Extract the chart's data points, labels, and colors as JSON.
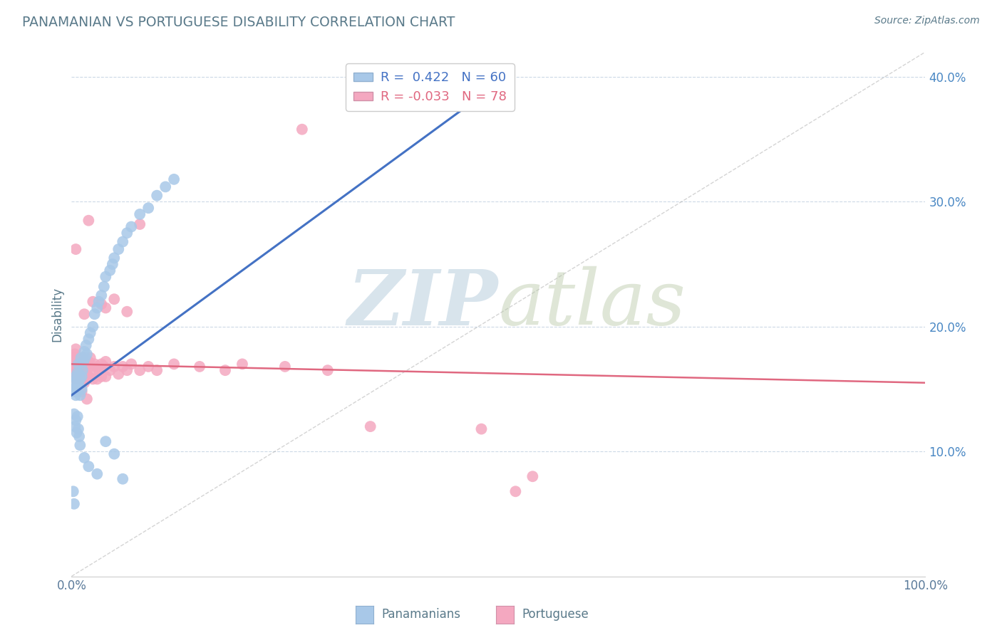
{
  "title": "PANAMANIAN VS PORTUGUESE DISABILITY CORRELATION CHART",
  "source": "Source: ZipAtlas.com",
  "ylabel": "Disability",
  "title_color": "#5a7a8a",
  "panamanian_color": "#a8c8e8",
  "portuguese_color": "#f4a8c0",
  "panamanian_line_color": "#4472c4",
  "portuguese_line_color": "#e06880",
  "ylim_min": 0.0,
  "ylim_max": 0.42,
  "xlim_min": 0.0,
  "xlim_max": 1.0,
  "yticks": [
    0.1,
    0.2,
    0.3,
    0.4
  ],
  "ytick_labels": [
    "10.0%",
    "20.0%",
    "30.0%",
    "40.0%"
  ],
  "xtick_labels": [
    "0.0%",
    "100.0%"
  ],
  "pan_line_x0": 0.0,
  "pan_line_y0": 0.145,
  "pan_line_x1": 0.5,
  "pan_line_y1": 0.395,
  "por_line_x0": 0.0,
  "por_line_y0": 0.17,
  "por_line_x1": 1.0,
  "por_line_y1": 0.155,
  "panamanian_points": [
    [
      0.002,
      0.15
    ],
    [
      0.003,
      0.155
    ],
    [
      0.004,
      0.148
    ],
    [
      0.005,
      0.16
    ],
    [
      0.005,
      0.145
    ],
    [
      0.006,
      0.152
    ],
    [
      0.006,
      0.158
    ],
    [
      0.007,
      0.163
    ],
    [
      0.007,
      0.148
    ],
    [
      0.008,
      0.155
    ],
    [
      0.008,
      0.17
    ],
    [
      0.009,
      0.162
    ],
    [
      0.01,
      0.158
    ],
    [
      0.01,
      0.145
    ],
    [
      0.011,
      0.175
    ],
    [
      0.012,
      0.16
    ],
    [
      0.012,
      0.15
    ],
    [
      0.013,
      0.165
    ],
    [
      0.014,
      0.172
    ],
    [
      0.015,
      0.18
    ],
    [
      0.016,
      0.175
    ],
    [
      0.017,
      0.185
    ],
    [
      0.018,
      0.178
    ],
    [
      0.02,
      0.19
    ],
    [
      0.022,
      0.195
    ],
    [
      0.025,
      0.2
    ],
    [
      0.027,
      0.21
    ],
    [
      0.03,
      0.215
    ],
    [
      0.032,
      0.22
    ],
    [
      0.035,
      0.225
    ],
    [
      0.038,
      0.232
    ],
    [
      0.04,
      0.24
    ],
    [
      0.045,
      0.245
    ],
    [
      0.048,
      0.25
    ],
    [
      0.05,
      0.255
    ],
    [
      0.055,
      0.262
    ],
    [
      0.06,
      0.268
    ],
    [
      0.065,
      0.275
    ],
    [
      0.07,
      0.28
    ],
    [
      0.08,
      0.29
    ],
    [
      0.09,
      0.295
    ],
    [
      0.1,
      0.305
    ],
    [
      0.11,
      0.312
    ],
    [
      0.12,
      0.318
    ],
    [
      0.003,
      0.13
    ],
    [
      0.004,
      0.12
    ],
    [
      0.005,
      0.125
    ],
    [
      0.006,
      0.115
    ],
    [
      0.007,
      0.128
    ],
    [
      0.008,
      0.118
    ],
    [
      0.009,
      0.112
    ],
    [
      0.01,
      0.105
    ],
    [
      0.015,
      0.095
    ],
    [
      0.02,
      0.088
    ],
    [
      0.03,
      0.082
    ],
    [
      0.04,
      0.108
    ],
    [
      0.05,
      0.098
    ],
    [
      0.06,
      0.078
    ],
    [
      0.002,
      0.068
    ],
    [
      0.003,
      0.058
    ]
  ],
  "portuguese_points": [
    [
      0.002,
      0.175
    ],
    [
      0.002,
      0.168
    ],
    [
      0.003,
      0.172
    ],
    [
      0.003,
      0.162
    ],
    [
      0.004,
      0.178
    ],
    [
      0.004,
      0.165
    ],
    [
      0.005,
      0.172
    ],
    [
      0.005,
      0.158
    ],
    [
      0.005,
      0.182
    ],
    [
      0.006,
      0.17
    ],
    [
      0.006,
      0.16
    ],
    [
      0.007,
      0.175
    ],
    [
      0.007,
      0.162
    ],
    [
      0.008,
      0.17
    ],
    [
      0.008,
      0.158
    ],
    [
      0.009,
      0.175
    ],
    [
      0.009,
      0.162
    ],
    [
      0.01,
      0.168
    ],
    [
      0.01,
      0.175
    ],
    [
      0.011,
      0.162
    ],
    [
      0.011,
      0.17
    ],
    [
      0.012,
      0.168
    ],
    [
      0.012,
      0.158
    ],
    [
      0.013,
      0.165
    ],
    [
      0.013,
      0.175
    ],
    [
      0.014,
      0.162
    ],
    [
      0.015,
      0.17
    ],
    [
      0.015,
      0.155
    ],
    [
      0.016,
      0.168
    ],
    [
      0.017,
      0.162
    ],
    [
      0.018,
      0.17
    ],
    [
      0.018,
      0.158
    ],
    [
      0.02,
      0.172
    ],
    [
      0.02,
      0.16
    ],
    [
      0.022,
      0.168
    ],
    [
      0.022,
      0.175
    ],
    [
      0.025,
      0.165
    ],
    [
      0.025,
      0.158
    ],
    [
      0.027,
      0.17
    ],
    [
      0.03,
      0.168
    ],
    [
      0.03,
      0.158
    ],
    [
      0.032,
      0.165
    ],
    [
      0.035,
      0.17
    ],
    [
      0.035,
      0.16
    ],
    [
      0.038,
      0.168
    ],
    [
      0.04,
      0.172
    ],
    [
      0.04,
      0.16
    ],
    [
      0.045,
      0.165
    ],
    [
      0.05,
      0.168
    ],
    [
      0.055,
      0.162
    ],
    [
      0.06,
      0.168
    ],
    [
      0.065,
      0.165
    ],
    [
      0.07,
      0.17
    ],
    [
      0.08,
      0.165
    ],
    [
      0.09,
      0.168
    ],
    [
      0.1,
      0.165
    ],
    [
      0.12,
      0.17
    ],
    [
      0.15,
      0.168
    ],
    [
      0.18,
      0.165
    ],
    [
      0.2,
      0.17
    ],
    [
      0.25,
      0.168
    ],
    [
      0.3,
      0.165
    ],
    [
      0.35,
      0.12
    ],
    [
      0.02,
      0.285
    ],
    [
      0.08,
      0.282
    ],
    [
      0.27,
      0.358
    ],
    [
      0.005,
      0.262
    ],
    [
      0.025,
      0.22
    ],
    [
      0.015,
      0.21
    ],
    [
      0.035,
      0.218
    ],
    [
      0.04,
      0.215
    ],
    [
      0.05,
      0.222
    ],
    [
      0.065,
      0.212
    ],
    [
      0.48,
      0.118
    ],
    [
      0.54,
      0.08
    ],
    [
      0.52,
      0.068
    ],
    [
      0.012,
      0.148
    ],
    [
      0.018,
      0.142
    ]
  ]
}
